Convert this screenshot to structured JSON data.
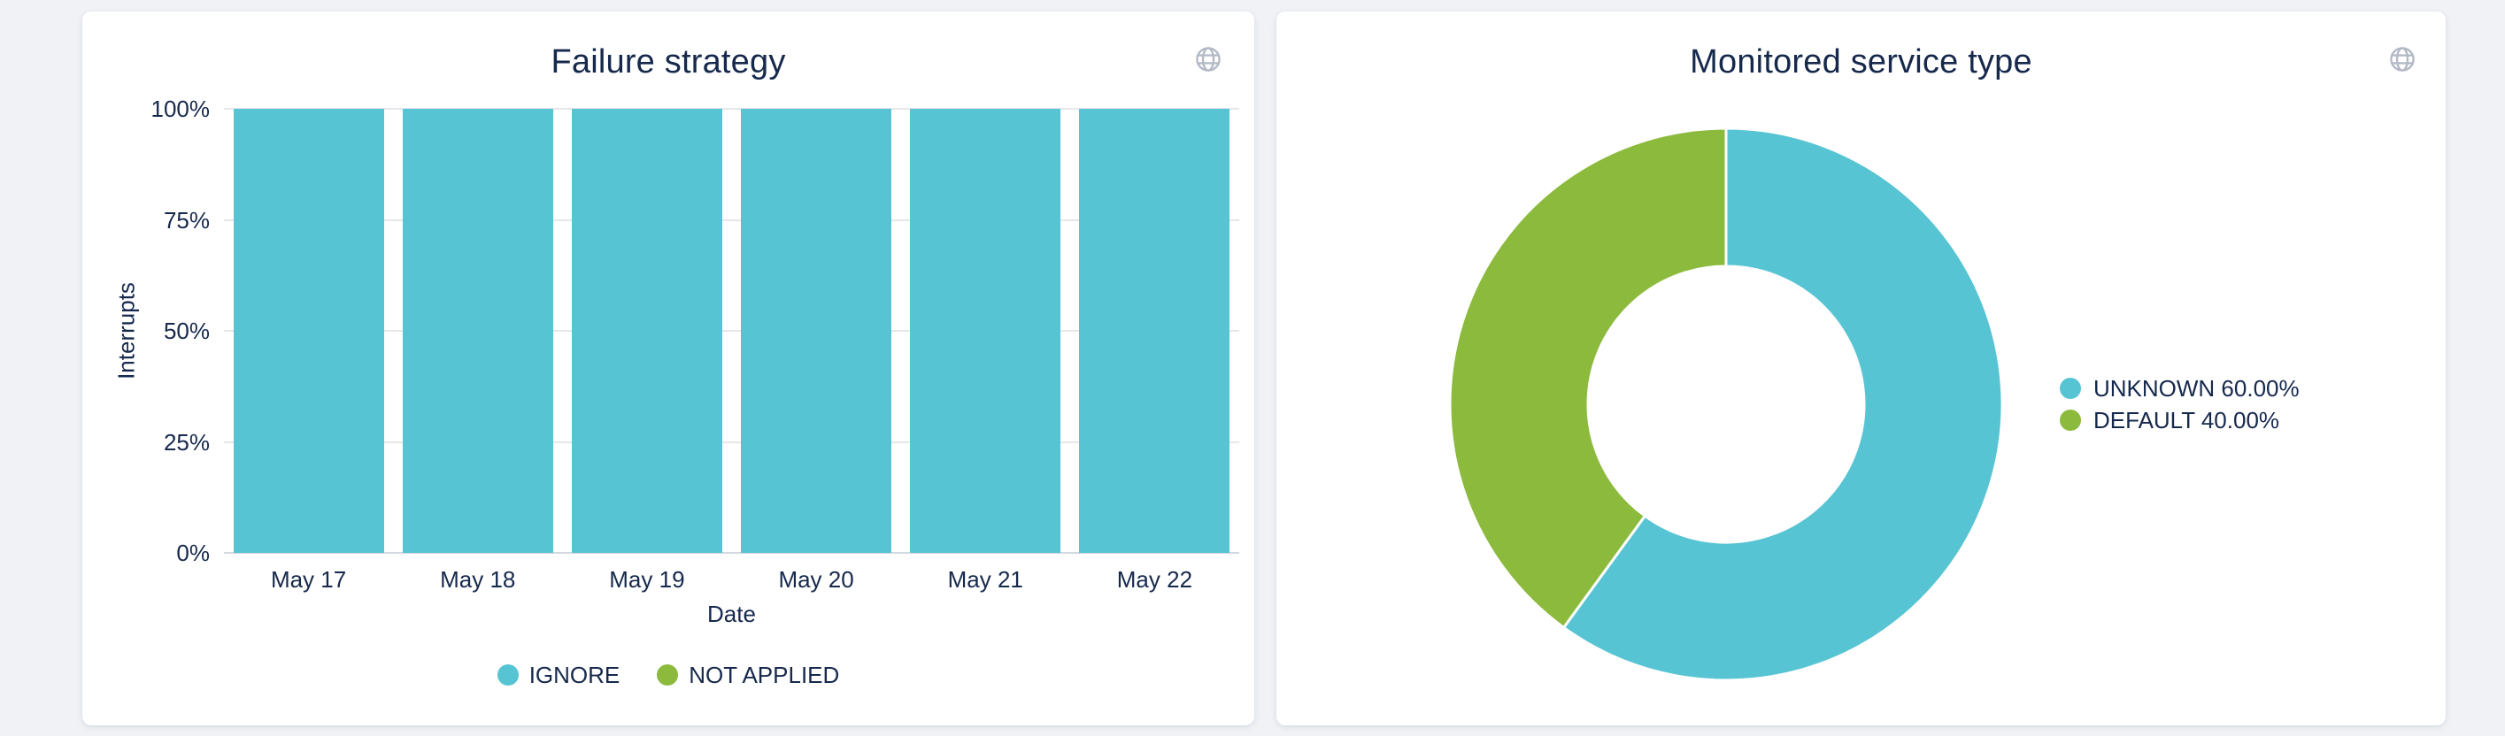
{
  "app": {
    "background_color": "#F0F2F6",
    "card_background_color": "#FFFFFF"
  },
  "colors": {
    "teal": "#57C4D3",
    "green": "#8CBA3D",
    "text_navy": "#16294C",
    "gridline": "#E6E7EA",
    "axis_line": "#D4D8DF",
    "icon_gray": "#B3BAC6"
  },
  "cards": [
    {
      "title": "Failure strategy",
      "corner_icon": "globe-icon"
    },
    {
      "title": "Monitored service type",
      "corner_icon": "globe-icon"
    }
  ],
  "chart_data": [
    {
      "type": "bar",
      "title": "Failure strategy",
      "xlabel": "Date",
      "ylabel": "Interrupts",
      "categories": [
        "May 17",
        "May 18",
        "May 19",
        "May 20",
        "May 21",
        "May 22"
      ],
      "series": [
        {
          "name": "IGNORE",
          "color": "#57C4D3",
          "values": [
            100,
            100,
            100,
            100,
            100,
            100
          ]
        },
        {
          "name": "NOT APPLIED",
          "color": "#8CBA3D",
          "values": [
            0,
            0,
            0,
            0,
            0,
            0
          ]
        }
      ],
      "stacked": true,
      "ylim": [
        0,
        100
      ],
      "yticks": [
        {
          "value": 0,
          "label": "0%"
        },
        {
          "value": 25,
          "label": "25%"
        },
        {
          "value": 50,
          "label": "50%"
        },
        {
          "value": 75,
          "label": "75%"
        },
        {
          "value": 100,
          "label": "100%"
        }
      ],
      "grid": true,
      "legend_position": "bottom"
    },
    {
      "type": "pie",
      "donut": true,
      "title": "Monitored service type",
      "slices": [
        {
          "label": "UNKNOWN",
          "value": 60.0,
          "display": "UNKNOWN 60.00%",
          "color": "#57C4D3"
        },
        {
          "label": "DEFAULT",
          "value": 40.0,
          "display": "DEFAULT 40.00%",
          "color": "#8CBA3D"
        }
      ],
      "inner_radius_ratio": 0.5,
      "start_angle_deg": -90,
      "legend_position": "right"
    }
  ]
}
